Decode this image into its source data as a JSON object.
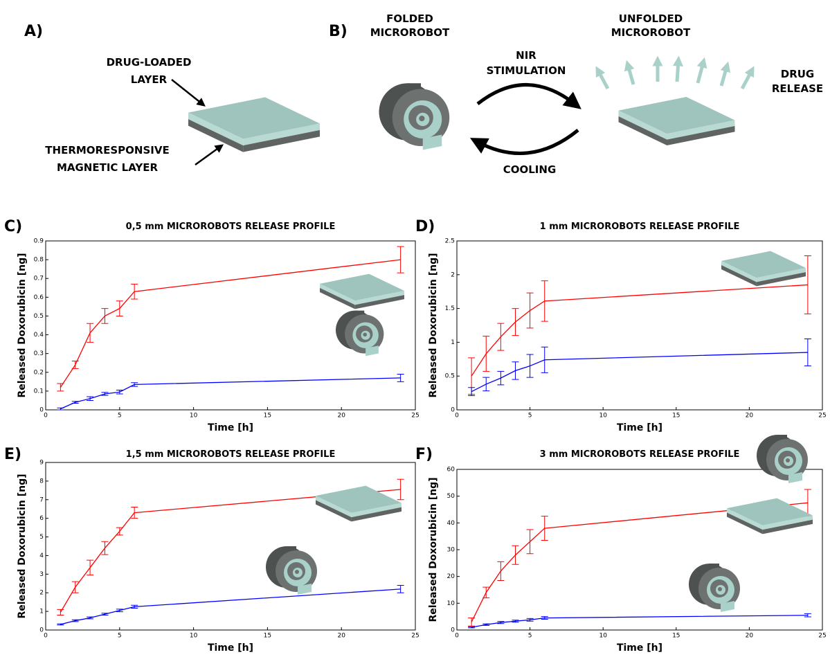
{
  "diagram": {
    "panel_a": {
      "label": "A)",
      "drug_layer": [
        "DRUG-LOADED",
        "LAYER"
      ],
      "magnetic_layer": [
        "THERMORESPONSIVE",
        "MAGNETIC LAYER"
      ]
    },
    "panel_b": {
      "label": "B)",
      "folded": [
        "FOLDED",
        "MICROROBOT"
      ],
      "stimulation": [
        "NIR",
        "STIMULATION"
      ],
      "unfolded": [
        "UNFOLDED",
        "MICROROBOT"
      ],
      "release": [
        "DRUG",
        "RELEASE"
      ],
      "cooling": "COOLING"
    }
  },
  "chart_data": [
    {
      "type": "line",
      "panel": "C)",
      "title": "0,5 mm MICROROBOTS RELEASE PROFILE",
      "x_label": "Time [h]",
      "y_label": "Released Doxorubicin [ng]",
      "x": [
        1,
        2,
        3,
        4,
        5,
        6,
        24
      ],
      "xlim": [
        0,
        25
      ],
      "xticks": [
        0,
        5,
        10,
        15,
        20,
        25
      ],
      "ylim": [
        0,
        0.9
      ],
      "yticks": [
        0,
        0.1,
        0.2,
        0.3,
        0.4,
        0.5,
        0.6,
        0.7,
        0.8,
        0.9
      ],
      "series": [
        {
          "color": "#ff0000",
          "values": [
            0.12,
            0.24,
            0.41,
            0.5,
            0.54,
            0.63,
            0.8
          ],
          "errors": [
            0.02,
            0.02,
            0.05,
            0.04,
            0.04,
            0.04,
            0.07
          ]
        },
        {
          "color": "#0000ff",
          "values": [
            0.005,
            0.04,
            0.06,
            0.085,
            0.095,
            0.135,
            0.17
          ],
          "errors": [
            0.005,
            0.005,
            0.01,
            0.008,
            0.01,
            0.01,
            0.02
          ]
        }
      ]
    },
    {
      "type": "line",
      "panel": "D)",
      "title": "1 mm MICROROBOTS RELEASE PROFILE",
      "x_label": "Time [h]",
      "y_label": "Released Doxorubicin [ng]",
      "x": [
        1,
        2,
        3,
        4,
        5,
        6,
        24
      ],
      "xlim": [
        0,
        25
      ],
      "xticks": [
        0,
        5,
        10,
        15,
        20,
        25
      ],
      "ylim": [
        0,
        2.5
      ],
      "yticks": [
        0,
        0.5,
        1,
        1.5,
        2,
        2.5
      ],
      "series": [
        {
          "color": "#ff0000",
          "values": [
            0.5,
            0.83,
            1.08,
            1.3,
            1.47,
            1.61,
            1.85
          ],
          "errors": [
            0.27,
            0.26,
            0.2,
            0.2,
            0.26,
            0.3,
            0.43
          ]
        },
        {
          "color": "#0000ff",
          "values": [
            0.27,
            0.38,
            0.47,
            0.58,
            0.65,
            0.74,
            0.85
          ],
          "errors": [
            0.06,
            0.1,
            0.1,
            0.13,
            0.17,
            0.19,
            0.2
          ]
        }
      ]
    },
    {
      "type": "line",
      "panel": "E)",
      "title": "1,5 mm MICROROBOTS RELEASE PROFILE",
      "x_label": "Time [h]",
      "y_label": "Released Doxorubicin [ng]",
      "x": [
        1,
        2,
        3,
        4,
        5,
        6,
        24
      ],
      "xlim": [
        0,
        25
      ],
      "xticks": [
        0,
        5,
        10,
        15,
        20,
        25
      ],
      "ylim": [
        0,
        9
      ],
      "yticks": [
        0,
        1,
        2,
        3,
        4,
        5,
        6,
        7,
        8,
        9
      ],
      "series": [
        {
          "color": "#ff0000",
          "values": [
            0.95,
            2.3,
            3.35,
            4.4,
            5.3,
            6.3,
            7.55
          ],
          "errors": [
            0.15,
            0.3,
            0.4,
            0.35,
            0.2,
            0.3,
            0.55
          ]
        },
        {
          "color": "#0000ff",
          "values": [
            0.3,
            0.5,
            0.65,
            0.85,
            1.05,
            1.25,
            2.2
          ],
          "errors": [
            0.03,
            0.05,
            0.05,
            0.05,
            0.07,
            0.08,
            0.2
          ]
        }
      ]
    },
    {
      "type": "line",
      "panel": "F)",
      "title": "3 mm MICROROBOTS RELEASE PROFILE",
      "x_label": "Time [h]",
      "y_label": "Released Doxorubicin [ng]",
      "x": [
        1,
        2,
        3,
        4,
        5,
        6,
        24
      ],
      "xlim": [
        0,
        25
      ],
      "xticks": [
        0,
        5,
        10,
        15,
        20,
        25
      ],
      "ylim": [
        0,
        60
      ],
      "yticks": [
        0,
        10,
        20,
        30,
        40,
        50,
        60
      ],
      "series": [
        {
          "color": "#ff0000",
          "values": [
            3,
            14,
            22,
            28,
            33,
            38,
            47.5
          ],
          "errors": [
            1.5,
            2,
            3.5,
            3.5,
            4.5,
            4.5,
            5
          ]
        },
        {
          "color": "#0000ff",
          "values": [
            1,
            2,
            2.8,
            3.3,
            3.8,
            4.5,
            5.5
          ],
          "errors": [
            0.2,
            0.3,
            0.4,
            0.4,
            0.5,
            0.5,
            0.6
          ]
        }
      ]
    }
  ]
}
